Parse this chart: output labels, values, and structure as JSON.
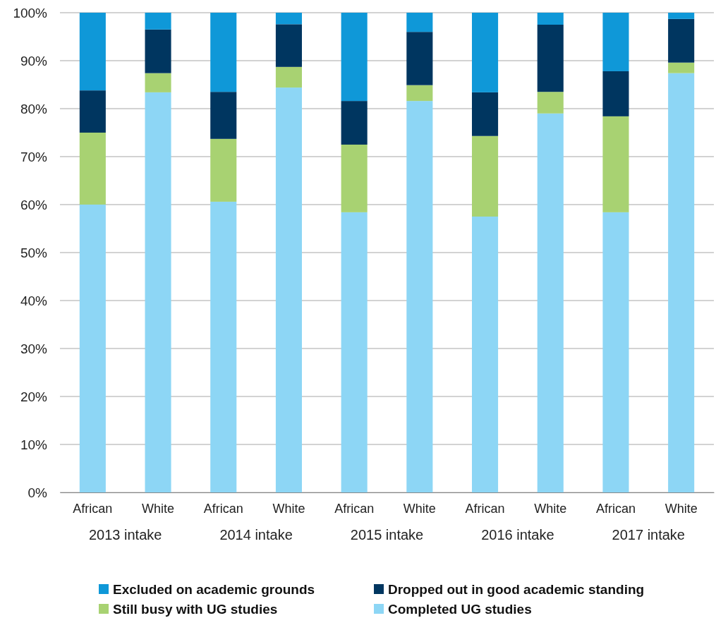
{
  "chart_data": {
    "type": "bar",
    "stacked": true,
    "categories": [
      "African",
      "White",
      "African",
      "White",
      "African",
      "White",
      "African",
      "White",
      "African",
      "White"
    ],
    "series": [
      {
        "name": "Completed UG studies",
        "color": "#8dd6f5",
        "values": [
          60.0,
          83.4,
          60.6,
          84.4,
          58.4,
          81.6,
          57.5,
          79.0,
          58.4,
          87.4
        ]
      },
      {
        "name": "Still busy with UG studies",
        "color": "#a8d272",
        "values": [
          15.0,
          4.0,
          13.1,
          4.3,
          14.1,
          3.3,
          16.8,
          4.5,
          20.0,
          2.2
        ]
      },
      {
        "name": "Dropped out in good academic standing",
        "color": "#003660",
        "values": [
          8.8,
          9.1,
          9.8,
          8.9,
          9.1,
          11.1,
          9.1,
          14.0,
          9.4,
          9.1
        ]
      },
      {
        "name": "Excluded on academic grounds",
        "color": "#0f98d8",
        "values": [
          16.2,
          3.5,
          16.5,
          2.4,
          18.4,
          4.0,
          16.6,
          2.5,
          12.2,
          1.3
        ]
      }
    ],
    "annotations": [
      "2013 intake",
      "2014 intake",
      "2015 intake",
      "2016 intake",
      "2017 intake"
    ],
    "ylim": [
      0,
      100
    ],
    "yticks": [
      {
        "value": 0,
        "label": "0%"
      },
      {
        "value": 10,
        "label": "10%"
      },
      {
        "value": 20,
        "label": "20%"
      },
      {
        "value": 30,
        "label": "30%"
      },
      {
        "value": 40,
        "label": "40%"
      },
      {
        "value": 50,
        "label": "50%"
      },
      {
        "value": 60,
        "label": "60%"
      },
      {
        "value": 70,
        "label": "70%"
      },
      {
        "value": 80,
        "label": "80%"
      },
      {
        "value": 90,
        "label": "90%"
      },
      {
        "value": 100,
        "label": "100%"
      }
    ],
    "grid": "y",
    "legend": "bottom"
  }
}
